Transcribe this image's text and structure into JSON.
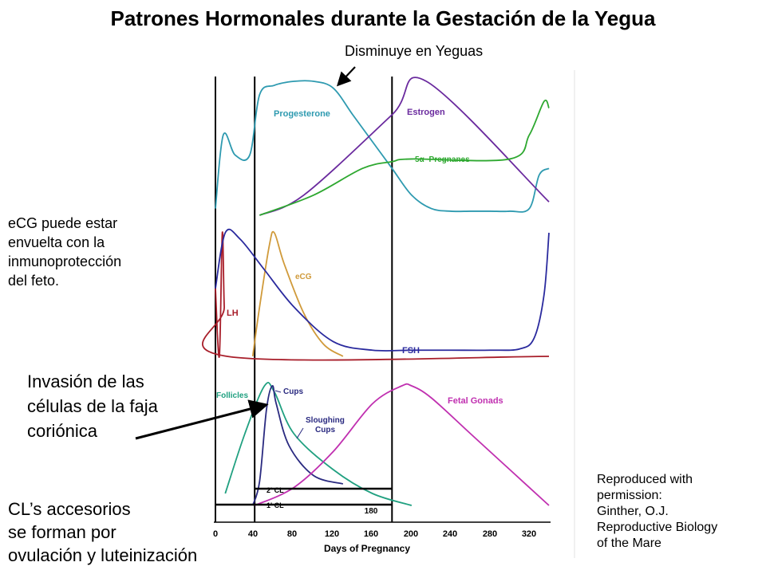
{
  "title": "Patrones Hormonales durante la Gestación de la Yegua",
  "annotations": {
    "decreases": "Disminuye en Yeguas",
    "ecg_note": [
      "eCG puede estar",
      "envuelta con la",
      "inmunoprotección",
      "del feto."
    ],
    "invasion": [
      "Invasión de las",
      "células de la faja",
      "coriónica"
    ],
    "accessory_cl": [
      "CL’s accesorios",
      "se forman por",
      "ovulación y luteinización"
    ]
  },
  "credit": [
    "Reproduced with",
    "permission:",
    "Ginther, O.J.",
    "Reproductive Biology",
    "of the Mare"
  ],
  "chart_data": {
    "type": "line",
    "xlabel": "Days of Pregnancy",
    "x_ticks": [
      "0",
      "40",
      "80",
      "120",
      "160",
      "180",
      "200",
      "240",
      "280",
      "320"
    ],
    "x_range": [
      0,
      340
    ],
    "reference_days": [
      0,
      40,
      180
    ],
    "panels": [
      {
        "series": [
          {
            "name": "Progesterone",
            "color": "#2e9ab0",
            "x": [
              0,
              8,
              20,
              35,
              45,
              60,
              80,
              100,
              120,
              140,
              160,
              180,
              200,
              220,
              240,
              260,
              280,
              300,
              320,
              330,
              340
            ],
            "y": [
              0.05,
              0.6,
              0.45,
              0.45,
              0.9,
              0.97,
              1.0,
              1.0,
              0.95,
              0.75,
              0.55,
              0.35,
              0.15,
              0.05,
              0.03,
              0.03,
              0.03,
              0.03,
              0.05,
              0.3,
              0.35
            ]
          },
          {
            "name": "Estrogen",
            "color": "#6a2a9e",
            "x": [
              45,
              90,
              180,
              215,
              340
            ],
            "y": [
              0.0,
              0.15,
              0.75,
              1.0,
              0.1
            ]
          },
          {
            "name": "5α−Pregnanes",
            "color": "#2ea830",
            "x": [
              45,
              100,
              150,
              180,
              200,
              300,
              320,
              335,
              340
            ],
            "y": [
              0.0,
              0.15,
              0.35,
              0.4,
              0.42,
              0.42,
              0.6,
              0.85,
              0.8
            ]
          }
        ]
      },
      {
        "series": [
          {
            "name": "eCG",
            "color": "#d09a3a",
            "x": [
              38,
              45,
              55,
              60,
              70,
              90,
              110,
              130
            ],
            "y": [
              0.0,
              0.4,
              0.9,
              1.0,
              0.75,
              0.35,
              0.1,
              0.0
            ]
          },
          {
            "name": "LH",
            "color": "#a81e2a",
            "x": [
              0,
              4,
              7,
              9,
              12,
              340
            ],
            "y": [
              0.55,
              0.0,
              1.0,
              0.4,
              0.0,
              0.0
            ]
          },
          {
            "name": "FSH",
            "color": "#2a2a9e",
            "x": [
              0,
              10,
              25,
              50,
              80,
              120,
              160,
              200,
              240,
              280,
              310,
              325,
              335,
              340
            ],
            "y": [
              0.55,
              1.0,
              0.95,
              0.7,
              0.4,
              0.12,
              0.05,
              0.05,
              0.05,
              0.05,
              0.06,
              0.15,
              0.5,
              1.0
            ]
          }
        ]
      },
      {
        "series": [
          {
            "name": "Follicles",
            "color": "#20a080",
            "x": [
              10,
              30,
              50,
              60,
              80,
              120,
              160,
              200
            ],
            "y": [
              0.1,
              0.6,
              1.0,
              0.95,
              0.6,
              0.3,
              0.1,
              0.0
            ]
          },
          {
            "name": "Cups",
            "color": "#2a2a80",
            "x": [
              38,
              45,
              52,
              58,
              62,
              75,
              100,
              130
            ],
            "y": [
              0.0,
              0.2,
              0.8,
              1.0,
              0.85,
              0.5,
              0.25,
              0.18
            ]
          },
          {
            "name": "Sloughing Cups",
            "color": "#2a2a80",
            "x": [],
            "y": []
          },
          {
            "name": "Fetal Gonads",
            "color": "#c030b0",
            "x": [
              40,
              80,
              120,
              160,
              190,
              200,
              220,
              260,
              300,
              340
            ],
            "y": [
              0.0,
              0.15,
              0.45,
              0.85,
              1.0,
              1.0,
              0.9,
              0.6,
              0.3,
              0.0
            ]
          },
          {
            "name": "2' CL",
            "color": "#000000",
            "x": [
              40,
              180
            ],
            "y": [
              0.2,
              0.2
            ]
          },
          {
            "name": "1' CL",
            "color": "#000000",
            "x": [
              0,
              180
            ],
            "y": [
              0.0,
              0.0
            ]
          }
        ]
      }
    ]
  }
}
